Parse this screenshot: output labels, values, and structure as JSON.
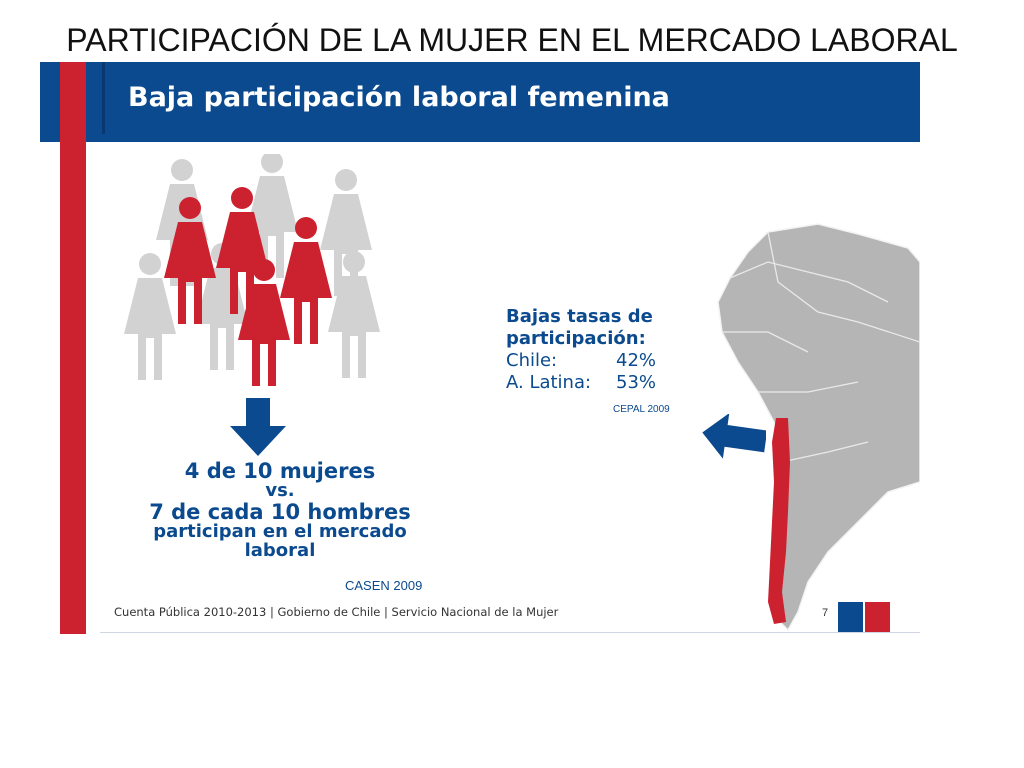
{
  "slide": {
    "title": "PARTICIPACIÓN DE LA MUJER EN EL MERCADO LABORAL"
  },
  "panel": {
    "banner_title": "Baja participación laboral femenina",
    "summary": {
      "line1": "4 de 10 mujeres",
      "line2": "vs.",
      "line3": "7 de cada 10 hombres",
      "line4": "participan en el mercado",
      "line5": "laboral"
    },
    "summary_source": "CASEN 2009",
    "rates": {
      "heading1": "Bajas tasas de",
      "heading2": "participación:",
      "rows": [
        {
          "label": "Chile:",
          "value": "42%"
        },
        {
          "label": "A. Latina:",
          "value": "53%"
        }
      ],
      "source": "CEPAL 2009"
    },
    "footer": "Cuenta Pública 2010-2013 | Gobierno de Chile | Servicio Nacional de la Mujer",
    "page_number": "7",
    "figures": {
      "female_highlighted": 4,
      "female_total": 10
    },
    "colors": {
      "blue": "#0b4a8e",
      "red": "#cc2230",
      "gray": "#cfcfcf"
    },
    "icons": [
      "women-figures-icon",
      "down-arrow-icon",
      "south-america-map-icon",
      "left-arrow-icon",
      "chile-flag-icon"
    ]
  }
}
